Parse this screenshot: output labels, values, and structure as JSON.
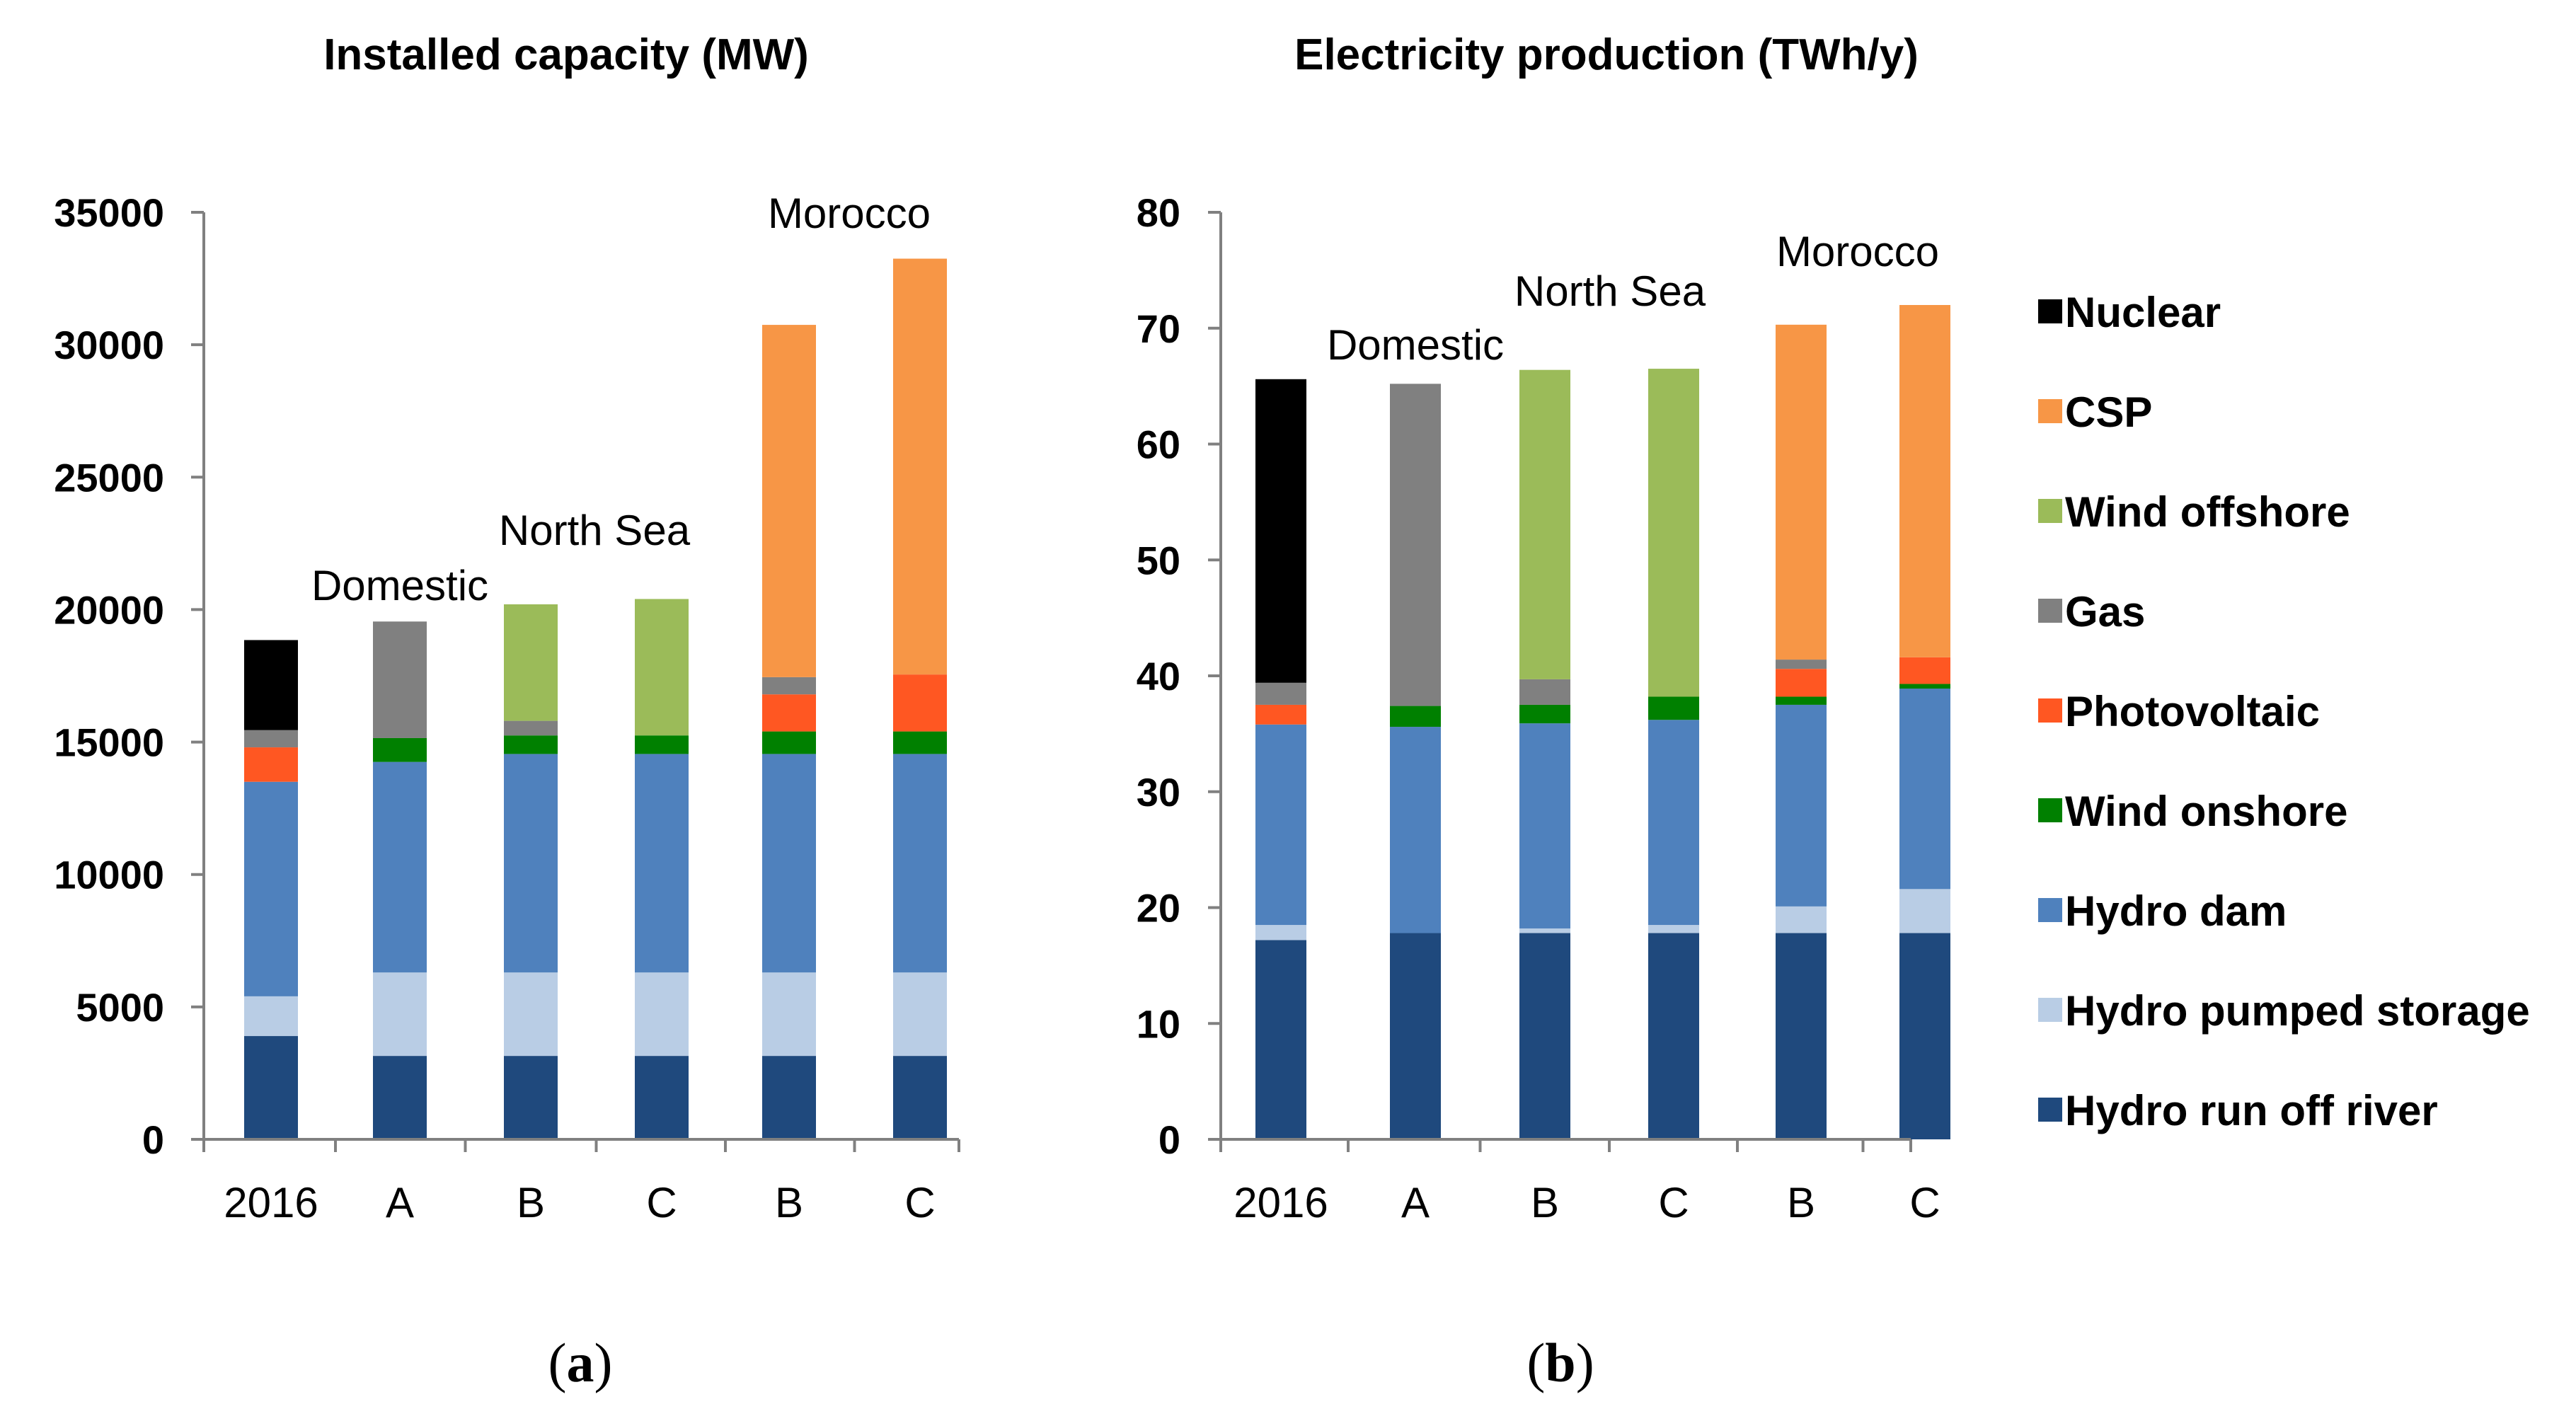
{
  "chart_data": [
    {
      "type": "bar",
      "stacked": true,
      "title": "Installed capacity (MW)",
      "caption_letter": "a",
      "categories": [
        "2016",
        "A",
        "B",
        "C",
        "B",
        "C"
      ],
      "group_labels": [
        "Domestic",
        "North Sea",
        "Morocco"
      ],
      "ylim": [
        0,
        35000
      ],
      "yticks": [
        0,
        5000,
        10000,
        15000,
        20000,
        25000,
        30000,
        35000
      ],
      "series": [
        {
          "name": "Hydro run off river",
          "color": "#1f497d",
          "values": [
            3900,
            3150,
            3150,
            3150,
            3150,
            3150
          ]
        },
        {
          "name": "Hydro pumped storage",
          "color": "#b9cde5",
          "values": [
            1500,
            3150,
            3150,
            3150,
            3150,
            3150
          ]
        },
        {
          "name": "Hydro dam",
          "color": "#4f81bd",
          "values": [
            8100,
            7950,
            8250,
            8250,
            8250,
            8250
          ]
        },
        {
          "name": "Wind onshore",
          "color": "#008000",
          "values": [
            0,
            900,
            700,
            700,
            850,
            850
          ]
        },
        {
          "name": "Photovoltaic",
          "color": "#ff5722",
          "values": [
            1300,
            0,
            0,
            0,
            1400,
            2150
          ]
        },
        {
          "name": "Gas",
          "color": "#808080",
          "values": [
            650,
            4400,
            550,
            0,
            650,
            0
          ]
        },
        {
          "name": "Wind offshore",
          "color": "#9bbb59",
          "values": [
            0,
            0,
            4400,
            5150,
            0,
            0
          ]
        },
        {
          "name": "CSP",
          "color": "#f79646",
          "values": [
            0,
            0,
            0,
            0,
            13300,
            15700
          ]
        },
        {
          "name": "Nuclear",
          "color": "#000000",
          "values": [
            3400,
            0,
            0,
            0,
            0,
            0
          ]
        }
      ]
    },
    {
      "type": "bar",
      "stacked": true,
      "title": "Electricity production  (TWh/y)",
      "caption_letter": "b",
      "categories": [
        "2016",
        "A",
        "B",
        "C",
        "B",
        "C"
      ],
      "group_labels": [
        "Domestic",
        "North Sea",
        "Morocco"
      ],
      "ylim": [
        0,
        80
      ],
      "yticks": [
        0,
        10,
        20,
        30,
        40,
        50,
        60,
        70,
        80
      ],
      "series": [
        {
          "name": "Hydro run off river",
          "color": "#1f497d",
          "values": [
            17.2,
            17.8,
            17.8,
            17.8,
            17.8,
            17.8
          ]
        },
        {
          "name": "Hydro pumped storage",
          "color": "#b9cde5",
          "values": [
            1.3,
            0,
            0.4,
            0.7,
            2.3,
            3.8
          ]
        },
        {
          "name": "Hydro dam",
          "color": "#4f81bd",
          "values": [
            17.3,
            17.8,
            17.7,
            17.7,
            17.4,
            17.3
          ]
        },
        {
          "name": "Wind onshore",
          "color": "#008000",
          "values": [
            0,
            1.8,
            1.6,
            2.0,
            0.7,
            0.4
          ]
        },
        {
          "name": "Photovoltaic",
          "color": "#ff5722",
          "values": [
            1.7,
            0,
            0,
            0,
            2.4,
            2.3
          ]
        },
        {
          "name": "Gas",
          "color": "#808080",
          "values": [
            1.9,
            27.8,
            2.2,
            0,
            0.8,
            0
          ]
        },
        {
          "name": "Wind offshore",
          "color": "#9bbb59",
          "values": [
            0,
            0,
            26.7,
            28.3,
            0,
            0
          ]
        },
        {
          "name": "CSP",
          "color": "#f79646",
          "values": [
            0,
            0,
            0,
            0,
            28.9,
            30.4
          ]
        },
        {
          "name": "Nuclear",
          "color": "#000000",
          "values": [
            26.2,
            0,
            0,
            0,
            0,
            0
          ]
        }
      ]
    }
  ],
  "legend": [
    {
      "name": "Nuclear",
      "color": "#000000"
    },
    {
      "name": "CSP",
      "color": "#f79646"
    },
    {
      "name": "Wind offshore",
      "color": "#9bbb59"
    },
    {
      "name": "Gas",
      "color": "#808080"
    },
    {
      "name": "Photovoltaic",
      "color": "#ff5722"
    },
    {
      "name": "Wind onshore",
      "color": "#008000"
    },
    {
      "name": "Hydro dam",
      "color": "#4f81bd"
    },
    {
      "name": "Hydro pumped storage",
      "color": "#b9cde5"
    },
    {
      "name": "Hydro run off river",
      "color": "#1f497d"
    }
  ]
}
